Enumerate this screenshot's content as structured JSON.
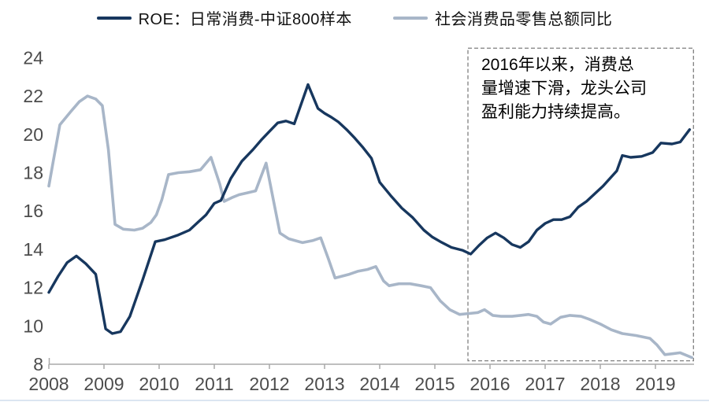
{
  "legend": {
    "items": [
      {
        "label": "ROE：日常消费-中证800样本",
        "color": "#17375e"
      },
      {
        "label": "社会消费品零售总额同比",
        "color": "#a8b6c8"
      }
    ]
  },
  "chart_data": {
    "type": "line",
    "title": "",
    "xlabel": "",
    "ylabel": "",
    "xlim": [
      2008,
      2019.7
    ],
    "ylim": [
      8,
      24
    ],
    "x_tick_years": [
      2008,
      2009,
      2010,
      2011,
      2012,
      2013,
      2014,
      2015,
      2016,
      2017,
      2018,
      2019
    ],
    "y_ticks": [
      8,
      10,
      12,
      14,
      16,
      18,
      20,
      22,
      24
    ],
    "grid": false,
    "legend_position": "top",
    "axis_color": "#a9a9a9",
    "tick_label_color": "#4c4c4c",
    "annotation": {
      "text": "2016年以来，消费总\n量增速下滑，龙头公司\n盈利能力持续提高。",
      "box_x_years": [
        2015.6,
        2019.69
      ],
      "box_y_values": [
        8.18,
        24.5
      ],
      "box_color": "#7f7f7f"
    },
    "series": [
      {
        "id": "roe",
        "name": "ROE：日常消费-中证800样本",
        "color": "#17375e",
        "stroke_width": 3.4,
        "points": [
          [
            2008.0,
            11.75
          ],
          [
            2008.17,
            12.6
          ],
          [
            2008.33,
            13.3
          ],
          [
            2008.5,
            13.65
          ],
          [
            2008.67,
            13.25
          ],
          [
            2008.85,
            12.7
          ],
          [
            2009.03,
            9.85
          ],
          [
            2009.15,
            9.6
          ],
          [
            2009.3,
            9.7
          ],
          [
            2009.47,
            10.5
          ],
          [
            2009.7,
            12.4
          ],
          [
            2009.93,
            14.4
          ],
          [
            2010.1,
            14.5
          ],
          [
            2010.35,
            14.75
          ],
          [
            2010.55,
            15.0
          ],
          [
            2010.7,
            15.4
          ],
          [
            2010.85,
            15.8
          ],
          [
            2011.0,
            16.4
          ],
          [
            2011.12,
            16.55
          ],
          [
            2011.3,
            17.7
          ],
          [
            2011.5,
            18.6
          ],
          [
            2011.7,
            19.2
          ],
          [
            2011.85,
            19.7
          ],
          [
            2012.0,
            20.15
          ],
          [
            2012.15,
            20.6
          ],
          [
            2012.3,
            20.7
          ],
          [
            2012.45,
            20.55
          ],
          [
            2012.7,
            22.6
          ],
          [
            2012.88,
            21.35
          ],
          [
            2013.0,
            21.1
          ],
          [
            2013.12,
            20.9
          ],
          [
            2013.25,
            20.65
          ],
          [
            2013.4,
            20.25
          ],
          [
            2013.55,
            19.8
          ],
          [
            2013.7,
            19.3
          ],
          [
            2013.85,
            18.75
          ],
          [
            2014.0,
            17.5
          ],
          [
            2014.2,
            16.8
          ],
          [
            2014.4,
            16.15
          ],
          [
            2014.6,
            15.65
          ],
          [
            2014.8,
            15.0
          ],
          [
            2014.95,
            14.65
          ],
          [
            2015.1,
            14.4
          ],
          [
            2015.3,
            14.1
          ],
          [
            2015.5,
            13.95
          ],
          [
            2015.65,
            13.75
          ],
          [
            2015.8,
            14.2
          ],
          [
            2015.95,
            14.6
          ],
          [
            2016.1,
            14.85
          ],
          [
            2016.25,
            14.6
          ],
          [
            2016.4,
            14.25
          ],
          [
            2016.55,
            14.1
          ],
          [
            2016.7,
            14.4
          ],
          [
            2016.85,
            15.0
          ],
          [
            2017.0,
            15.35
          ],
          [
            2017.15,
            15.55
          ],
          [
            2017.3,
            15.55
          ],
          [
            2017.45,
            15.7
          ],
          [
            2017.6,
            16.2
          ],
          [
            2017.75,
            16.5
          ],
          [
            2017.9,
            16.9
          ],
          [
            2018.05,
            17.3
          ],
          [
            2018.3,
            18.1
          ],
          [
            2018.4,
            18.9
          ],
          [
            2018.55,
            18.8
          ],
          [
            2018.75,
            18.85
          ],
          [
            2018.95,
            19.05
          ],
          [
            2019.1,
            19.55
          ],
          [
            2019.3,
            19.5
          ],
          [
            2019.45,
            19.6
          ],
          [
            2019.62,
            20.25
          ]
        ]
      },
      {
        "id": "retail",
        "name": "社会消费品零售总额同比",
        "color": "#a8b6c8",
        "stroke_width": 3.6,
        "points": [
          [
            2008.0,
            17.3
          ],
          [
            2008.08,
            18.6
          ],
          [
            2008.2,
            20.5
          ],
          [
            2008.4,
            21.2
          ],
          [
            2008.55,
            21.7
          ],
          [
            2008.7,
            22.0
          ],
          [
            2008.85,
            21.85
          ],
          [
            2008.97,
            21.5
          ],
          [
            2009.08,
            19.2
          ],
          [
            2009.2,
            15.3
          ],
          [
            2009.35,
            15.05
          ],
          [
            2009.55,
            15.0
          ],
          [
            2009.7,
            15.1
          ],
          [
            2009.85,
            15.4
          ],
          [
            2009.95,
            15.8
          ],
          [
            2010.05,
            16.6
          ],
          [
            2010.17,
            17.9
          ],
          [
            2010.35,
            18.0
          ],
          [
            2010.55,
            18.05
          ],
          [
            2010.75,
            18.15
          ],
          [
            2010.94,
            18.8
          ],
          [
            2011.1,
            17.4
          ],
          [
            2011.18,
            16.5
          ],
          [
            2011.32,
            16.7
          ],
          [
            2011.45,
            16.85
          ],
          [
            2011.6,
            16.95
          ],
          [
            2011.75,
            17.05
          ],
          [
            2011.94,
            18.5
          ],
          [
            2012.07,
            16.6
          ],
          [
            2012.19,
            14.85
          ],
          [
            2012.35,
            14.55
          ],
          [
            2012.6,
            14.35
          ],
          [
            2012.78,
            14.45
          ],
          [
            2012.93,
            14.6
          ],
          [
            2013.07,
            13.5
          ],
          [
            2013.19,
            12.5
          ],
          [
            2013.32,
            12.6
          ],
          [
            2013.45,
            12.7
          ],
          [
            2013.6,
            12.85
          ],
          [
            2013.78,
            12.95
          ],
          [
            2013.93,
            13.1
          ],
          [
            2014.07,
            12.35
          ],
          [
            2014.17,
            12.1
          ],
          [
            2014.35,
            12.2
          ],
          [
            2014.55,
            12.2
          ],
          [
            2014.75,
            12.1
          ],
          [
            2014.92,
            12.0
          ],
          [
            2015.1,
            11.3
          ],
          [
            2015.27,
            10.85
          ],
          [
            2015.45,
            10.6
          ],
          [
            2015.62,
            10.65
          ],
          [
            2015.78,
            10.7
          ],
          [
            2015.9,
            10.85
          ],
          [
            2016.05,
            10.55
          ],
          [
            2016.2,
            10.5
          ],
          [
            2016.4,
            10.5
          ],
          [
            2016.55,
            10.55
          ],
          [
            2016.7,
            10.6
          ],
          [
            2016.85,
            10.5
          ],
          [
            2016.97,
            10.2
          ],
          [
            2017.1,
            10.1
          ],
          [
            2017.28,
            10.45
          ],
          [
            2017.45,
            10.55
          ],
          [
            2017.65,
            10.5
          ],
          [
            2017.8,
            10.35
          ],
          [
            2018.0,
            10.1
          ],
          [
            2018.2,
            9.8
          ],
          [
            2018.4,
            9.6
          ],
          [
            2018.65,
            9.5
          ],
          [
            2018.9,
            9.35
          ],
          [
            2019.03,
            9.0
          ],
          [
            2019.17,
            8.5
          ],
          [
            2019.32,
            8.55
          ],
          [
            2019.45,
            8.6
          ],
          [
            2019.66,
            8.35
          ]
        ]
      }
    ]
  }
}
